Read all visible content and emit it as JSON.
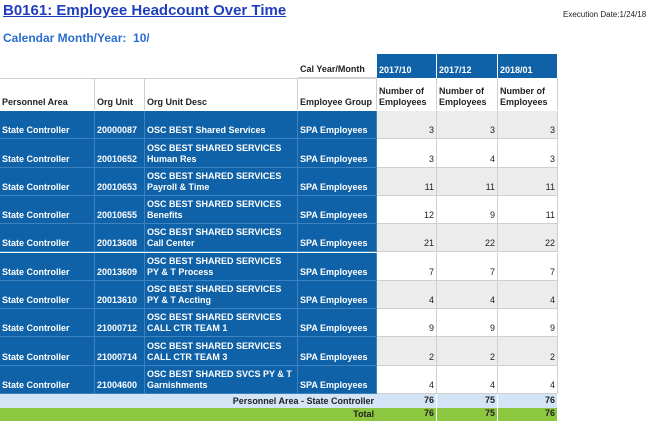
{
  "header": {
    "title": "B0161: Employee Headcount Over Time",
    "execution_date": "Execution Date:1/24/18",
    "calendar_label": "Calendar Month/Year:  10/:"
  },
  "table": {
    "dimension_header": "Cal Year/Month",
    "months": [
      "2017/10",
      "2017/12",
      "2018/01"
    ],
    "columns": [
      "Personnel Area",
      "Org Unit",
      "Org Unit Desc",
      "Employee Group"
    ],
    "measure_headers": [
      "Number of Employees",
      "Number of Employees",
      "Number of Employees"
    ],
    "rows": [
      [
        "State Controller",
        "20000087",
        "OSC BEST Shared Services",
        "SPA Employees",
        "3",
        "3",
        "3"
      ],
      [
        "State Controller",
        "20010652",
        "OSC BEST SHARED SERVICES Human Res",
        "SPA Employees",
        "3",
        "4",
        "3"
      ],
      [
        "State Controller",
        "20010653",
        "OSC BEST SHARED SERVICES Payroll & Time",
        "SPA Employees",
        "11",
        "11",
        "11"
      ],
      [
        "State Controller",
        "20010655",
        "OSC BEST SHARED SERVICES Benefits",
        "SPA Employees",
        "12",
        "9",
        "11"
      ],
      [
        "State Controller",
        "20013608",
        "OSC BEST SHARED SERVICES Call Center",
        "SPA Employees",
        "21",
        "22",
        "22"
      ],
      [
        "State Controller",
        "20013609",
        "OSC BEST SHARED SERVICES PY & T Process",
        "SPA Employees",
        "7",
        "7",
        "7"
      ],
      [
        "State Controller",
        "20013610",
        "OSC BEST SHARED SERVICES PY & T Accting",
        "SPA Employees",
        "4",
        "4",
        "4"
      ],
      [
        "State Controller",
        "21000712",
        "OSC BEST SHARED SERVICES CALL CTR TEAM 1",
        "SPA Employees",
        "9",
        "9",
        "9"
      ],
      [
        "State Controller",
        "21000714",
        "OSC BEST SHARED SERVICES CALL CTR TEAM 3",
        "SPA Employees",
        "2",
        "2",
        "2"
      ],
      [
        "State Controller",
        "21004600",
        "OSC BEST SHARED SVCS PY & T Garnishments",
        "SPA Employees",
        "4",
        "4",
        "4"
      ]
    ],
    "subtotal": {
      "label": "Personnel Area - State Controller",
      "values": [
        "76",
        "75",
        "76"
      ]
    },
    "total": {
      "label": "Total",
      "values": [
        "76",
        "75",
        "76"
      ]
    }
  }
}
